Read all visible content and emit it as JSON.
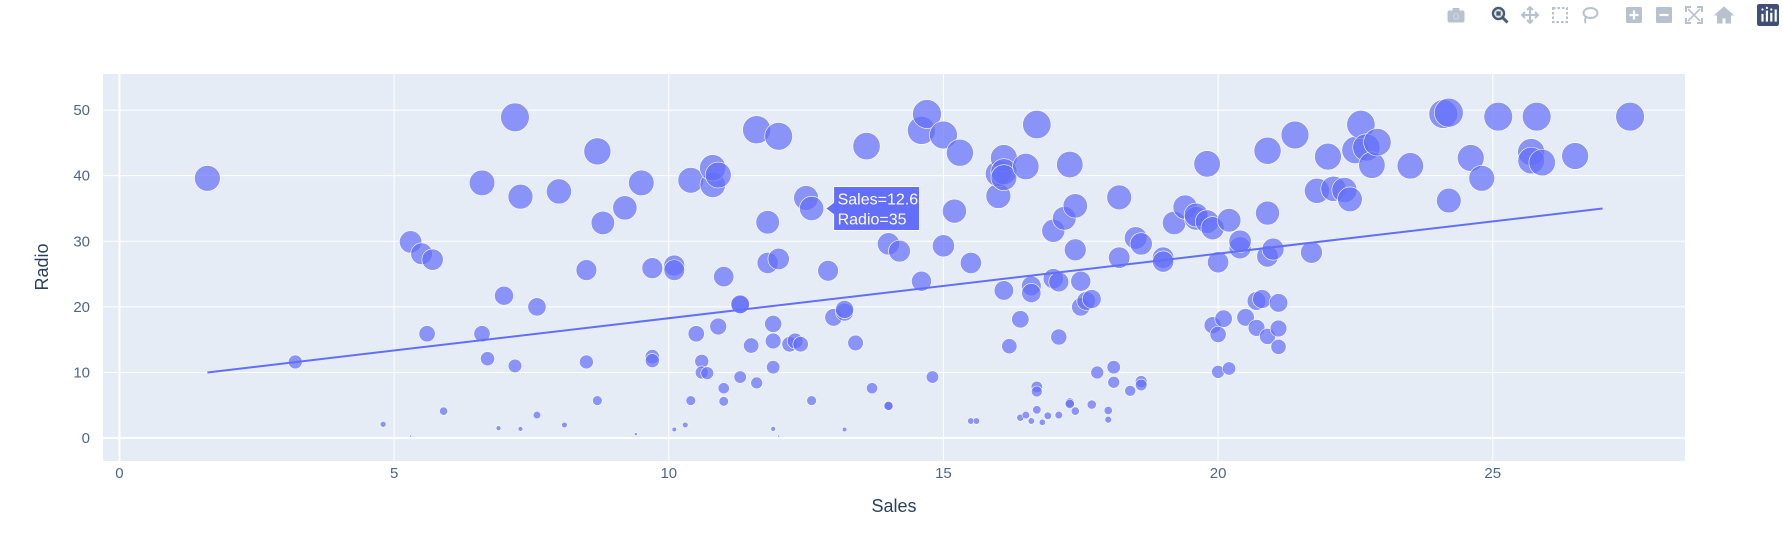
{
  "modebar": {
    "buttons": [
      {
        "name": "camera-icon",
        "title": "Download plot as a png"
      },
      {
        "name": "zoom-icon",
        "title": "Zoom",
        "active": true
      },
      {
        "name": "pan-icon",
        "title": "Pan"
      },
      {
        "name": "box-select-icon",
        "title": "Box Select"
      },
      {
        "name": "lasso-select-icon",
        "title": "Lasso Select"
      },
      {
        "name": "zoom-in-icon",
        "title": "Zoom in"
      },
      {
        "name": "zoom-out-icon",
        "title": "Zoom out"
      },
      {
        "name": "autoscale-icon",
        "title": "Autoscale"
      },
      {
        "name": "reset-axes-icon",
        "title": "Reset axes"
      },
      {
        "name": "plotly-logo-icon",
        "title": "Produced with Plotly"
      }
    ]
  },
  "chart_data": {
    "type": "scatter",
    "xlabel": "Sales",
    "ylabel": "Radio",
    "xlim": [
      -0.3,
      28.5
    ],
    "ylim": [
      -3.5,
      55.5
    ],
    "xticks": [
      0,
      5,
      10,
      15,
      20,
      25
    ],
    "yticks": [
      0,
      10,
      20,
      30,
      40,
      50
    ],
    "grid": true,
    "legend": "none",
    "colors": {
      "marker": "#636efa",
      "line": "#636efa",
      "plot_bg": "#e5ecf6",
      "grid": "#ffffff"
    },
    "size_encoding": "marker size proportional to Radio",
    "trendline": {
      "x": [
        1.6,
        27.0
      ],
      "y": [
        10.0,
        35.0
      ]
    },
    "hover": {
      "label_line1": "Sales=12.6",
      "label_line2": "Radio=35",
      "x": 12.6,
      "y": 35
    },
    "points": [
      [
        1.6,
        39.6
      ],
      [
        3.2,
        11.6
      ],
      [
        4.8,
        2.1
      ],
      [
        5.3,
        0.3
      ],
      [
        5.3,
        29.9
      ],
      [
        5.5,
        28.1
      ],
      [
        5.6,
        15.9
      ],
      [
        5.7,
        27.2
      ],
      [
        5.9,
        4.1
      ],
      [
        6.6,
        38.9
      ],
      [
        6.6,
        15.9
      ],
      [
        6.7,
        12.1
      ],
      [
        6.9,
        1.5
      ],
      [
        7.0,
        21.7
      ],
      [
        7.2,
        11.0
      ],
      [
        7.2,
        48.9
      ],
      [
        7.3,
        1.4
      ],
      [
        7.3,
        36.8
      ],
      [
        7.6,
        3.5
      ],
      [
        7.6,
        20.0
      ],
      [
        8.0,
        37.6
      ],
      [
        8.1,
        2.0
      ],
      [
        8.5,
        11.6
      ],
      [
        8.5,
        25.6
      ],
      [
        8.7,
        43.7
      ],
      [
        8.7,
        5.7
      ],
      [
        8.8,
        32.8
      ],
      [
        9.2,
        35.1
      ],
      [
        9.4,
        0.6
      ],
      [
        9.5,
        38.9
      ],
      [
        9.7,
        25.9
      ],
      [
        9.7,
        12.4
      ],
      [
        9.7,
        11.8
      ],
      [
        10.1,
        26.3
      ],
      [
        10.1,
        25.6
      ],
      [
        10.1,
        1.3
      ],
      [
        10.3,
        2.0
      ],
      [
        10.4,
        39.3
      ],
      [
        10.4,
        5.7
      ],
      [
        10.5,
        15.9
      ],
      [
        10.6,
        11.7
      ],
      [
        10.6,
        10.0
      ],
      [
        10.7,
        9.9
      ],
      [
        10.8,
        38.6
      ],
      [
        10.8,
        41.2
      ],
      [
        10.9,
        40.1
      ],
      [
        10.9,
        17.0
      ],
      [
        11.0,
        24.6
      ],
      [
        11.0,
        7.6
      ],
      [
        11.0,
        5.6
      ],
      [
        11.3,
        20.3
      ],
      [
        11.3,
        20.4
      ],
      [
        11.3,
        9.3
      ],
      [
        11.5,
        14.1
      ],
      [
        11.6,
        47.0
      ],
      [
        11.6,
        8.4
      ],
      [
        11.8,
        32.9
      ],
      [
        11.8,
        26.7
      ],
      [
        11.9,
        17.4
      ],
      [
        11.9,
        14.8
      ],
      [
        11.9,
        10.8
      ],
      [
        11.9,
        1.4
      ],
      [
        12.0,
        0.3
      ],
      [
        12.0,
        27.3
      ],
      [
        12.0,
        46.0
      ],
      [
        12.2,
        14.3
      ],
      [
        12.3,
        14.8
      ],
      [
        12.4,
        14.3
      ],
      [
        12.5,
        36.6
      ],
      [
        12.6,
        35.0
      ],
      [
        12.6,
        5.7
      ],
      [
        12.9,
        25.5
      ],
      [
        13.0,
        18.4
      ],
      [
        13.2,
        19.2
      ],
      [
        13.2,
        19.6
      ],
      [
        13.2,
        1.3
      ],
      [
        13.4,
        14.5
      ],
      [
        13.6,
        44.5
      ],
      [
        13.7,
        7.6
      ],
      [
        14.0,
        4.9
      ],
      [
        14.0,
        29.6
      ],
      [
        14.0,
        4.9
      ],
      [
        14.2,
        28.5
      ],
      [
        14.6,
        23.9
      ],
      [
        14.6,
        46.9
      ],
      [
        14.7,
        49.4
      ],
      [
        14.8,
        9.3
      ],
      [
        15.0,
        29.3
      ],
      [
        15.0,
        46.2
      ],
      [
        15.2,
        34.6
      ],
      [
        15.3,
        43.5
      ],
      [
        15.5,
        26.7
      ],
      [
        15.5,
        2.6
      ],
      [
        15.6,
        2.6
      ],
      [
        16.0,
        36.9
      ],
      [
        16.0,
        40.3
      ],
      [
        16.1,
        42.7
      ],
      [
        16.1,
        40.6
      ],
      [
        16.1,
        39.7
      ],
      [
        16.1,
        22.5
      ],
      [
        16.2,
        14.0
      ],
      [
        16.4,
        18.1
      ],
      [
        16.4,
        3.1
      ],
      [
        16.5,
        41.4
      ],
      [
        16.5,
        3.5
      ],
      [
        16.6,
        23.2
      ],
      [
        16.6,
        22.1
      ],
      [
        16.6,
        2.6
      ],
      [
        16.7,
        7.8
      ],
      [
        16.7,
        7.1
      ],
      [
        16.7,
        4.3
      ],
      [
        16.7,
        47.8
      ],
      [
        16.8,
        2.4
      ],
      [
        16.9,
        3.4
      ],
      [
        17.0,
        31.6
      ],
      [
        17.0,
        24.3
      ],
      [
        17.1,
        23.8
      ],
      [
        17.1,
        3.5
      ],
      [
        17.1,
        15.4
      ],
      [
        17.2,
        33.5
      ],
      [
        17.3,
        41.7
      ],
      [
        17.3,
        5.4
      ],
      [
        17.3,
        5.2
      ],
      [
        17.4,
        35.4
      ],
      [
        17.4,
        28.7
      ],
      [
        17.4,
        4.1
      ],
      [
        17.5,
        20.0
      ],
      [
        17.5,
        23.9
      ],
      [
        17.6,
        20.9
      ],
      [
        17.7,
        5.1
      ],
      [
        17.7,
        21.2
      ],
      [
        17.8,
        10.0
      ],
      [
        18.0,
        2.8
      ],
      [
        18.0,
        4.2
      ],
      [
        18.1,
        10.8
      ],
      [
        18.1,
        8.5
      ],
      [
        18.2,
        36.7
      ],
      [
        18.2,
        27.5
      ],
      [
        18.4,
        7.2
      ],
      [
        18.5,
        30.5
      ],
      [
        18.6,
        8.6
      ],
      [
        18.6,
        8.1
      ],
      [
        18.6,
        29.6
      ],
      [
        19.0,
        27.5
      ],
      [
        19.0,
        26.9
      ],
      [
        19.2,
        32.8
      ],
      [
        19.4,
        35.2
      ],
      [
        19.6,
        33.5
      ],
      [
        19.6,
        34.0
      ],
      [
        19.8,
        33.0
      ],
      [
        19.8,
        41.8
      ],
      [
        19.9,
        17.2
      ],
      [
        19.9,
        32.0
      ],
      [
        20.0,
        15.8
      ],
      [
        20.0,
        10.1
      ],
      [
        20.0,
        26.8
      ],
      [
        20.1,
        18.2
      ],
      [
        20.2,
        10.6
      ],
      [
        20.2,
        33.2
      ],
      [
        20.4,
        29.0
      ],
      [
        20.4,
        30.0
      ],
      [
        20.5,
        18.4
      ],
      [
        20.7,
        16.8
      ],
      [
        20.7,
        20.9
      ],
      [
        20.8,
        21.2
      ],
      [
        20.9,
        43.8
      ],
      [
        20.9,
        34.3
      ],
      [
        20.9,
        27.7
      ],
      [
        20.9,
        15.5
      ],
      [
        21.0,
        28.8
      ],
      [
        21.1,
        20.6
      ],
      [
        21.1,
        16.7
      ],
      [
        21.1,
        13.9
      ],
      [
        21.4,
        46.2
      ],
      [
        21.7,
        28.3
      ],
      [
        21.8,
        37.7
      ],
      [
        22.0,
        42.9
      ],
      [
        22.1,
        38.0
      ],
      [
        22.3,
        37.8
      ],
      [
        22.4,
        36.4
      ],
      [
        22.5,
        43.9
      ],
      [
        22.6,
        47.8
      ],
      [
        22.7,
        44.3
      ],
      [
        22.8,
        41.6
      ],
      [
        22.9,
        45.1
      ],
      [
        23.5,
        41.5
      ],
      [
        24.1,
        49.4
      ],
      [
        24.2,
        49.6
      ],
      [
        24.2,
        36.2
      ],
      [
        24.6,
        42.7
      ],
      [
        24.8,
        39.6
      ],
      [
        25.1,
        49.0
      ],
      [
        25.7,
        43.6
      ],
      [
        25.7,
        42.3
      ],
      [
        25.8,
        49.0
      ],
      [
        25.9,
        42.0
      ],
      [
        26.5,
        43.0
      ],
      [
        27.5,
        49.0
      ]
    ]
  }
}
